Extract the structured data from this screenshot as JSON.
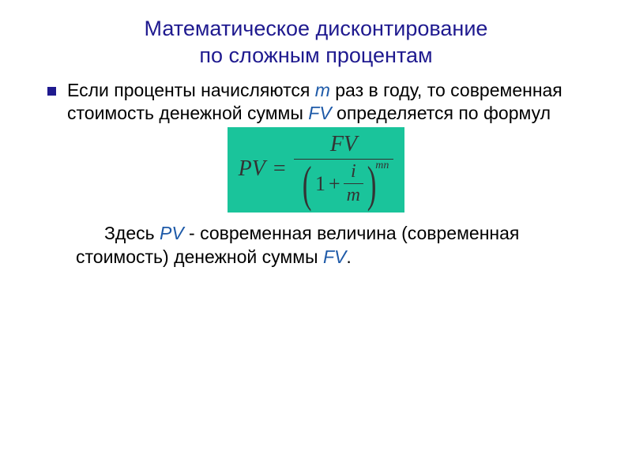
{
  "colors": {
    "title_color": "#1f1a8f",
    "body_color": "#000000",
    "accent_var": "#1e5aa8",
    "accent_var2": "#1e5aa8",
    "bullet_color": "#1f1a8f",
    "formula_bg": "#1ac49b",
    "formula_text": "#333333",
    "background": "#ffffff"
  },
  "typography": {
    "title_fontsize": 27,
    "body_fontsize": 23,
    "formula_fontsize": 28,
    "font_family_body": "Verdana",
    "font_family_formula": "Times New Roman"
  },
  "title": {
    "line1": "Математическое дисконтирование",
    "line2": "по сложным процентам"
  },
  "para1": {
    "seg1": "Если проценты начисляются ",
    "var_m": "m",
    "seg2": " раз в году, то современная стоимость денежной суммы ",
    "var_fv": "FV",
    "seg3": " определяется по формул"
  },
  "formula": {
    "lhs": "PV",
    "eq": "=",
    "numerator": "FV",
    "one": "1",
    "plus": "+",
    "inner_num": "i",
    "inner_den": "m",
    "exponent": "mn"
  },
  "para2": {
    "seg1": "Здесь ",
    "var_pv": "PV",
    "seg2": " - современная величина (современная стоимость) денежной суммы ",
    "var_fv": "FV",
    "period": "."
  }
}
